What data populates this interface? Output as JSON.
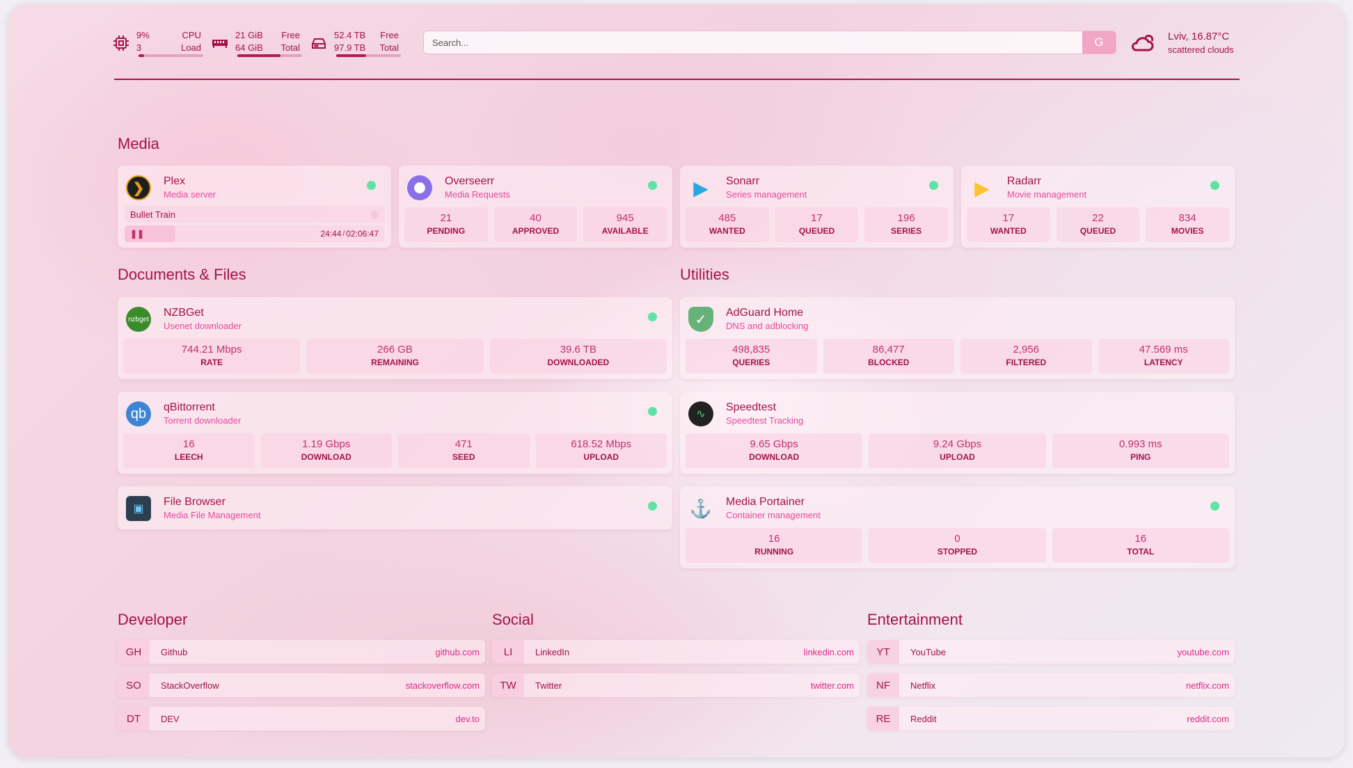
{
  "header": {
    "cpu": {
      "icon": "cpu-icon",
      "value": "9%",
      "sub": "3",
      "label": "CPU",
      "sublabel": "Load",
      "fill": 0.09
    },
    "memory": {
      "icon": "memory-icon",
      "value": "21 GiB",
      "sub": "64 GiB",
      "label": "Free",
      "sublabel": "Total",
      "fill": 0.67
    },
    "disk": {
      "icon": "disk-icon",
      "value": "52.4 TB",
      "sub": "97.9 TB",
      "label": "Free",
      "sublabel": "Total",
      "fill": 0.46
    },
    "search": {
      "placeholder": "Search...",
      "button": "G"
    },
    "weather": {
      "icon": "cloud-sun-icon",
      "location": "Lviv, 16.87°C",
      "description": "scattered clouds"
    }
  },
  "colors": {
    "accent": "#a3124a",
    "subtitle": "#e64a9d",
    "status_ok": "#5ee3a6",
    "stat_bg": "#fbd0e3"
  },
  "sections": {
    "media": "Media",
    "documents": "Documents & Files",
    "utilities": "Utilities",
    "developer": "Developer",
    "social": "Social",
    "entertainment": "Entertainment"
  },
  "media": [
    {
      "name": "Plex",
      "desc": "Media server",
      "icon": "plex-icon",
      "status": "online",
      "now_playing": {
        "title": "Bullet Train",
        "position": "24:44",
        "duration": "02:06:47",
        "separator": "/",
        "progress": 0.195
      }
    },
    {
      "name": "Overseerr",
      "desc": "Media Requests",
      "icon": "overseerr-icon",
      "status": "online",
      "stats": [
        {
          "value": "21",
          "label": "PENDING"
        },
        {
          "value": "40",
          "label": "APPROVED"
        },
        {
          "value": "945",
          "label": "AVAILABLE"
        }
      ]
    },
    {
      "name": "Sonarr",
      "desc": "Series management",
      "icon": "sonarr-icon",
      "status": "online",
      "stats": [
        {
          "value": "485",
          "label": "WANTED"
        },
        {
          "value": "17",
          "label": "QUEUED"
        },
        {
          "value": "196",
          "label": "SERIES"
        }
      ]
    },
    {
      "name": "Radarr",
      "desc": "Movie management",
      "icon": "radarr-icon",
      "status": "online",
      "stats": [
        {
          "value": "17",
          "label": "WANTED"
        },
        {
          "value": "22",
          "label": "QUEUED"
        },
        {
          "value": "834",
          "label": "MOVIES"
        }
      ]
    }
  ],
  "documents": [
    {
      "name": "NZBGet",
      "desc": "Usenet downloader",
      "icon": "nzbget-icon",
      "icon_text": "nzbget",
      "status": "online",
      "stats": [
        {
          "value": "744.21 Mbps",
          "label": "RATE"
        },
        {
          "value": "266 GB",
          "label": "REMAINING"
        },
        {
          "value": "39.6 TB",
          "label": "DOWNLOADED"
        }
      ]
    },
    {
      "name": "qBittorrent",
      "desc": "Torrent downloader",
      "icon": "qbittorrent-icon",
      "icon_text": "qb",
      "status": "online",
      "stats": [
        {
          "value": "16",
          "label": "LEECH"
        },
        {
          "value": "1.19 Gbps",
          "label": "DOWNLOAD"
        },
        {
          "value": "471",
          "label": "SEED"
        },
        {
          "value": "618.52 Mbps",
          "label": "UPLOAD"
        }
      ]
    },
    {
      "name": "File Browser",
      "desc": "Media File Management",
      "icon": "filebrowser-icon",
      "status": "online"
    }
  ],
  "utilities": [
    {
      "name": "AdGuard Home",
      "desc": "DNS and adblocking",
      "icon": "adguard-icon",
      "stats": [
        {
          "value": "498,835",
          "label": "QUERIES"
        },
        {
          "value": "86,477",
          "label": "BLOCKED"
        },
        {
          "value": "2,956",
          "label": "FILTERED"
        },
        {
          "value": "47.569 ms",
          "label": "LATENCY"
        }
      ]
    },
    {
      "name": "Speedtest",
      "desc": "Speedtest Tracking",
      "icon": "speedtest-icon",
      "stats": [
        {
          "value": "9.65 Gbps",
          "label": "DOWNLOAD"
        },
        {
          "value": "9.24 Gbps",
          "label": "UPLOAD"
        },
        {
          "value": "0.993 ms",
          "label": "PING"
        }
      ]
    },
    {
      "name": "Media Portainer",
      "desc": "Container management",
      "icon": "portainer-icon",
      "status": "online",
      "stats": [
        {
          "value": "16",
          "label": "RUNNING"
        },
        {
          "value": "0",
          "label": "STOPPED"
        },
        {
          "value": "16",
          "label": "TOTAL"
        }
      ]
    }
  ],
  "developer": [
    {
      "abbr": "GH",
      "name": "Github",
      "url": "github.com"
    },
    {
      "abbr": "SO",
      "name": "StackOverflow",
      "url": "stackoverflow.com"
    },
    {
      "abbr": "DT",
      "name": "DEV",
      "url": "dev.to"
    }
  ],
  "social": [
    {
      "abbr": "LI",
      "name": "LinkedIn",
      "url": "linkedin.com"
    },
    {
      "abbr": "TW",
      "name": "Twitter",
      "url": "twitter.com"
    }
  ],
  "entertainment": [
    {
      "abbr": "YT",
      "name": "YouTube",
      "url": "youtube.com"
    },
    {
      "abbr": "NF",
      "name": "Netflix",
      "url": "netflix.com"
    },
    {
      "abbr": "RE",
      "name": "Reddit",
      "url": "reddit.com"
    }
  ]
}
